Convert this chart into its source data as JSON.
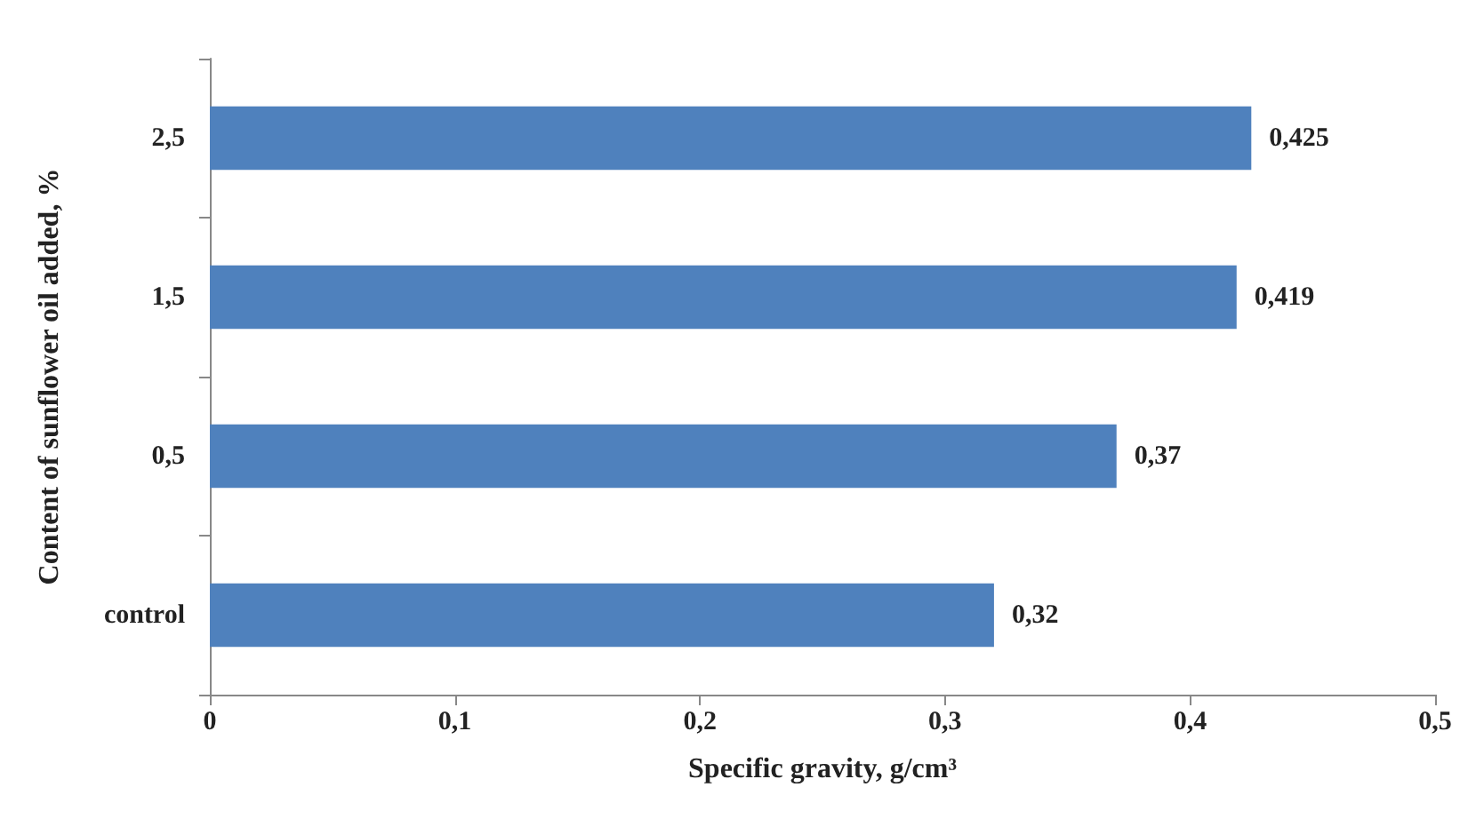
{
  "chart_data": {
    "type": "bar",
    "orientation": "horizontal",
    "xlabel": "Specific gravity, g/cm³",
    "ylabel": "Content of sunflower oil added, %",
    "categories": [
      "2,5",
      "1,5",
      "0,5",
      "control"
    ],
    "values": [
      0.425,
      0.419,
      0.37,
      0.32
    ],
    "value_labels": [
      "0,425",
      "0,419",
      "0,37",
      "0,32"
    ],
    "color": "#4f81bd",
    "xlim": [
      0,
      0.5
    ],
    "xticks": [
      0,
      {
        "value": 0.1,
        "label": "0,1"
      },
      {
        "value": 0.2,
        "label": "0,2"
      },
      {
        "value": 0.3,
        "label": "0,3"
      },
      {
        "value": 0.4,
        "label": "0,4"
      },
      {
        "value": 0.5,
        "label": "0,5"
      }
    ],
    "grid": false
  }
}
